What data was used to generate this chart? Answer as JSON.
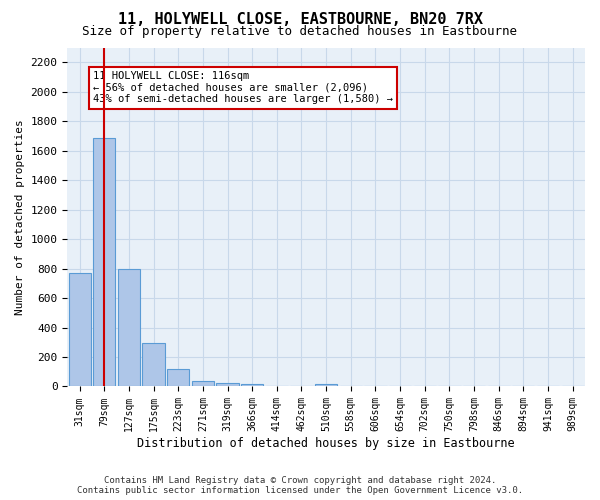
{
  "title": "11, HOLYWELL CLOSE, EASTBOURNE, BN20 7RX",
  "subtitle": "Size of property relative to detached houses in Eastbourne",
  "xlabel": "Distribution of detached houses by size in Eastbourne",
  "ylabel": "Number of detached properties",
  "footer_line1": "Contains HM Land Registry data © Crown copyright and database right 2024.",
  "footer_line2": "Contains public sector information licensed under the Open Government Licence v3.0.",
  "bin_labels": [
    "31sqm",
    "79sqm",
    "127sqm",
    "175sqm",
    "223sqm",
    "271sqm",
    "319sqm",
    "366sqm",
    "414sqm",
    "462sqm",
    "510sqm",
    "558sqm",
    "606sqm",
    "654sqm",
    "702sqm",
    "750sqm",
    "798sqm",
    "846sqm",
    "894sqm",
    "941sqm",
    "989sqm"
  ],
  "bar_heights": [
    770,
    1685,
    800,
    295,
    120,
    35,
    25,
    18,
    5,
    0,
    20,
    0,
    0,
    0,
    0,
    0,
    0,
    0,
    0,
    0,
    0
  ],
  "bar_color": "#aec6e8",
  "bar_edge_color": "#5a9bd5",
  "grid_color": "#c8d8ea",
  "background_color": "#e8f0f8",
  "red_line_x": 1.0,
  "annotation_text": "11 HOLYWELL CLOSE: 116sqm\n← 56% of detached houses are smaller (2,096)\n43% of semi-detached houses are larger (1,580) →",
  "annotation_box_color": "#cc0000",
  "ylim": [
    0,
    2300
  ],
  "yticks": [
    0,
    200,
    400,
    600,
    800,
    1000,
    1200,
    1400,
    1600,
    1800,
    2000,
    2200
  ]
}
